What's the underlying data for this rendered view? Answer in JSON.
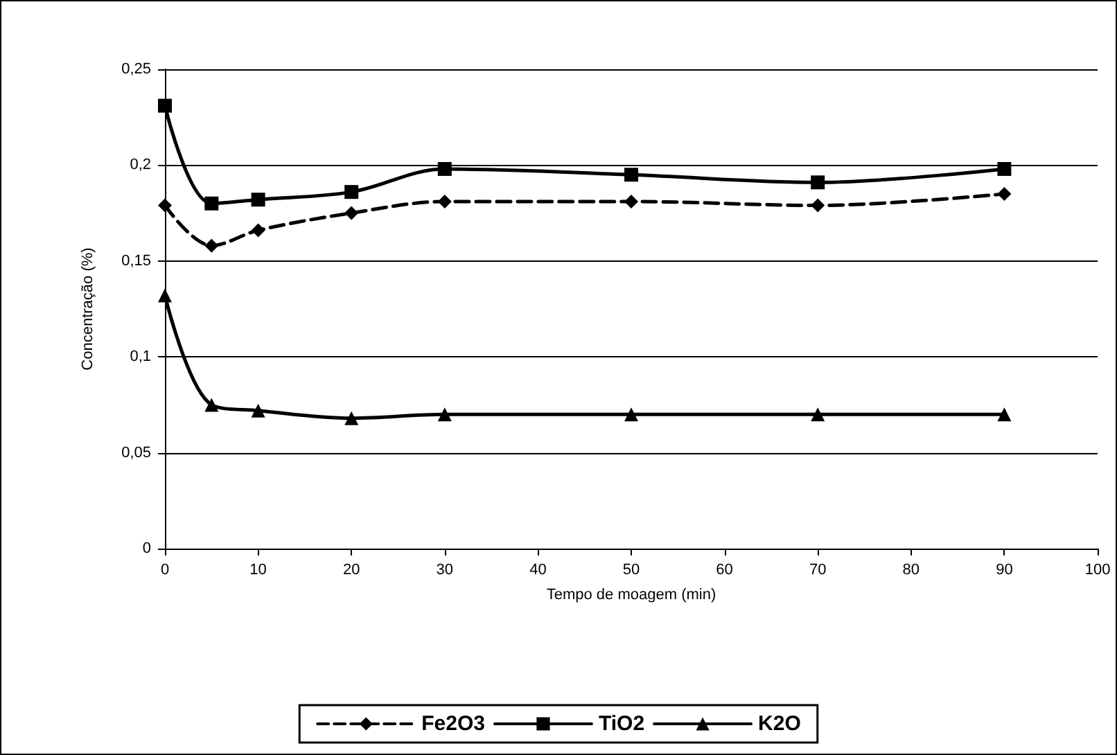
{
  "chart_data": {
    "type": "line",
    "xlabel": "Tempo de moagem (min)",
    "ylabel": "Concentração (%)",
    "x": [
      0,
      5,
      10,
      20,
      30,
      50,
      70,
      90
    ],
    "series": [
      {
        "name": "Fe2O3",
        "color": "#000000",
        "marker": "diamond",
        "line_style": "dashed",
        "values": [
          0.179,
          0.158,
          0.166,
          0.175,
          0.181,
          0.181,
          0.179,
          0.185
        ]
      },
      {
        "name": "TiO2",
        "color": "#000000",
        "marker": "square",
        "line_style": "solid",
        "values": [
          0.231,
          0.18,
          0.182,
          0.186,
          0.198,
          0.195,
          0.191,
          0.198
        ]
      },
      {
        "name": "K2O",
        "color": "#000000",
        "marker": "triangle",
        "line_style": "solid",
        "values": [
          0.132,
          0.075,
          0.072,
          0.068,
          0.07,
          0.07,
          0.07,
          0.07
        ]
      }
    ],
    "xlim": [
      0,
      100
    ],
    "xticks": [
      0,
      10,
      20,
      30,
      40,
      50,
      60,
      70,
      80,
      90,
      100
    ],
    "ylim": [
      0,
      0.25
    ],
    "yticks": [
      0,
      {
        "value": 0.05,
        "label": "0,05"
      },
      {
        "value": 0.1,
        "label": "0,1"
      },
      {
        "value": 0.15,
        "label": "0,15"
      },
      {
        "value": 0.2,
        "label": "0,2"
      },
      {
        "value": 0.25,
        "label": "0,25"
      }
    ],
    "grid": "y",
    "legend": "bottom"
  }
}
